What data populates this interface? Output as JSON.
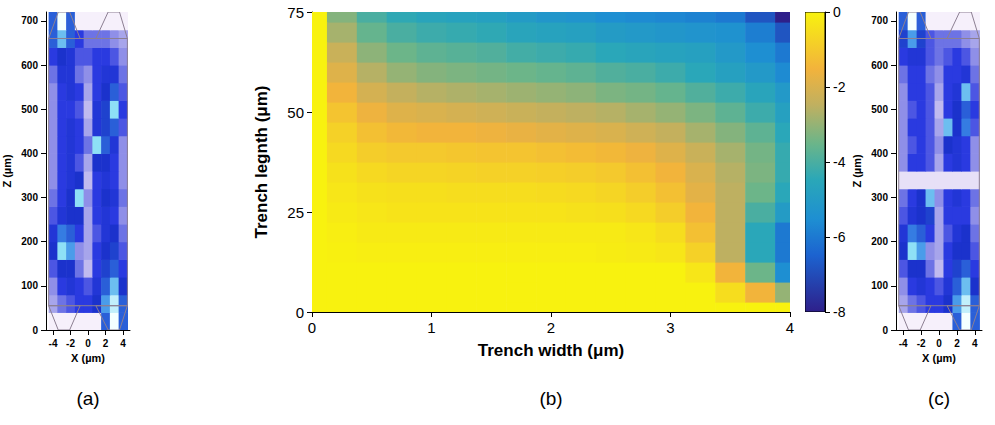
{
  "chart_data": [
    {
      "type": "heatmap",
      "panel": "(a)",
      "xlabel": "X (µm)",
      "ylabel": "Z (µm)",
      "xlim": [
        -4.8,
        4.8
      ],
      "xticks": [
        -4,
        -2,
        0,
        2,
        4
      ],
      "ylim": [
        0,
        720
      ],
      "yticks": [
        0,
        100,
        200,
        300,
        400,
        500,
        600,
        700
      ],
      "color_range": [
        0,
        1
      ],
      "x": [
        -4,
        -3,
        -2,
        -1,
        0,
        1,
        2,
        3,
        4
      ],
      "y": [
        20,
        60,
        100,
        140,
        180,
        220,
        260,
        300,
        340,
        380,
        420,
        460,
        500,
        540,
        580,
        620,
        660,
        700
      ],
      "values": [
        [
          0,
          0,
          0,
          0,
          0,
          0,
          0.7,
          1,
          0.7
        ],
        [
          0.3,
          0.4,
          0.45,
          0.5,
          0.5,
          0.6,
          0.8,
          0.95,
          0.7
        ],
        [
          0.35,
          0.5,
          0.55,
          0.5,
          0.45,
          0.55,
          0.7,
          0.85,
          0.6
        ],
        [
          0.45,
          0.6,
          0.6,
          0.4,
          0.25,
          0.5,
          0.65,
          0.7,
          0.5
        ],
        [
          0.6,
          0.9,
          0.8,
          0.35,
          0.3,
          0.5,
          0.6,
          0.65,
          0.45
        ],
        [
          0.55,
          0.75,
          0.7,
          0.5,
          0.3,
          0.45,
          0.55,
          0.6,
          0.4
        ],
        [
          0.45,
          0.55,
          0.6,
          0.6,
          0.3,
          0.5,
          0.55,
          0.5,
          0.35
        ],
        [
          0.4,
          0.5,
          0.6,
          0.9,
          0.35,
          0.5,
          0.6,
          0.55,
          0.4
        ],
        [
          0.35,
          0.5,
          0.55,
          0.6,
          0.25,
          0.5,
          0.55,
          0.5,
          0.35
        ],
        [
          0.35,
          0.5,
          0.55,
          0.45,
          0.3,
          0.6,
          0.6,
          0.5,
          0.35
        ],
        [
          0.35,
          0.5,
          0.55,
          0.5,
          0.4,
          0.9,
          0.7,
          0.55,
          0.35
        ],
        [
          0.35,
          0.5,
          0.55,
          0.5,
          0.3,
          0.55,
          0.65,
          0.7,
          0.45
        ],
        [
          0.35,
          0.5,
          0.5,
          0.45,
          0.25,
          0.55,
          0.65,
          0.9,
          0.5
        ],
        [
          0.35,
          0.5,
          0.55,
          0.5,
          0.3,
          0.5,
          0.6,
          0.7,
          0.45
        ],
        [
          0.4,
          0.55,
          0.55,
          0.4,
          0.35,
          0.5,
          0.55,
          0.55,
          0.4
        ],
        [
          0.5,
          0.6,
          0.55,
          0.45,
          0.45,
          0.5,
          0.5,
          0.45,
          0.35
        ],
        [
          0.7,
          0.85,
          0.7,
          0.5,
          0.4,
          0.4,
          0.4,
          0.35,
          0.3
        ],
        [
          0.7,
          1,
          0.7,
          0,
          0,
          0,
          0,
          0,
          0
        ]
      ],
      "outlines": [
        [
          [
            -4.5,
            55
          ],
          [
            4.5,
            55
          ],
          [
            4.5,
            660
          ],
          [
            -4.5,
            660
          ]
        ],
        [
          [
            -4.5,
            55
          ],
          [
            -0.9,
            55
          ],
          [
            -2.1,
            0
          ],
          [
            -3.4,
            0
          ]
        ],
        [
          [
            0.9,
            55
          ],
          [
            4.5,
            55
          ],
          [
            3.6,
            0
          ],
          [
            2.3,
            0
          ]
        ],
        [
          [
            -4.5,
            660
          ],
          [
            -0.9,
            660
          ],
          [
            -2.1,
            720
          ],
          [
            -3.4,
            720
          ]
        ],
        [
          [
            0.9,
            660
          ],
          [
            4.5,
            660
          ],
          [
            3.6,
            720
          ],
          [
            2.3,
            720
          ]
        ]
      ]
    },
    {
      "type": "contour",
      "panel": "(b)",
      "xlabel": "Trench width (μm)",
      "ylabel": "Trench legnth (μm)",
      "xlim": [
        0,
        4
      ],
      "xticks": [
        0,
        1,
        2,
        3,
        4
      ],
      "ylim": [
        0,
        75
      ],
      "yticks": [
        0,
        25,
        50,
        75
      ],
      "colorbar": {
        "range": [
          -8,
          0
        ],
        "ticks": [
          0,
          -2,
          -4,
          -6,
          -8
        ]
      },
      "x": [
        0,
        0.25,
        0.5,
        0.75,
        1,
        1.25,
        1.5,
        1.75,
        2,
        2.25,
        2.5,
        2.75,
        3,
        3.25,
        3.5,
        3.75,
        4
      ],
      "y": [
        0,
        5,
        10,
        15,
        20,
        25,
        30,
        35,
        40,
        45,
        50,
        55,
        60,
        65,
        70,
        75
      ],
      "values": [
        [
          0,
          0,
          0,
          0,
          0,
          0,
          0,
          0,
          0,
          0,
          0,
          0,
          0,
          0,
          0,
          0,
          0
        ],
        [
          0,
          0,
          0,
          0,
          0,
          0,
          0,
          0,
          0,
          0,
          0,
          0,
          0,
          0,
          -0.5,
          -1.5,
          -3
        ],
        [
          0,
          0,
          0,
          0,
          0,
          0,
          0,
          0,
          0,
          0,
          0,
          0,
          0,
          -0.3,
          -1.5,
          -3.5,
          -5.5
        ],
        [
          0,
          -0.05,
          -0.1,
          -0.1,
          -0.1,
          -0.1,
          -0.1,
          -0.1,
          -0.1,
          -0.1,
          -0.15,
          -0.2,
          -0.3,
          -0.8,
          -2.5,
          -4.5,
          -6
        ],
        [
          0,
          -0.1,
          -0.2,
          -0.2,
          -0.2,
          -0.2,
          -0.2,
          -0.2,
          -0.2,
          -0.2,
          -0.2,
          -0.3,
          -0.5,
          -1.2,
          -2.5,
          -4.5,
          -6
        ],
        [
          0,
          -0.2,
          -0.3,
          -0.35,
          -0.35,
          -0.35,
          -0.35,
          -0.35,
          -0.35,
          -0.4,
          -0.45,
          -0.6,
          -0.9,
          -1.5,
          -2.5,
          -4,
          -5
        ],
        [
          0,
          -0.3,
          -0.4,
          -0.45,
          -0.45,
          -0.5,
          -0.5,
          -0.5,
          -0.55,
          -0.6,
          -0.7,
          -0.9,
          -1.2,
          -1.8,
          -2.5,
          -3.5,
          -4.5
        ],
        [
          0,
          -0.4,
          -0.6,
          -0.7,
          -0.7,
          -0.75,
          -0.8,
          -0.8,
          -0.85,
          -0.9,
          -1,
          -1.2,
          -1.5,
          -2,
          -2.6,
          -3.3,
          -4.3
        ],
        [
          0,
          -0.6,
          -0.9,
          -1,
          -1,
          -1.05,
          -1.1,
          -1.1,
          -1.2,
          -1.3,
          -1.4,
          -1.6,
          -1.9,
          -2.3,
          -2.8,
          -3.4,
          -4.3
        ],
        [
          0,
          -0.8,
          -1.2,
          -1.4,
          -1.5,
          -1.5,
          -1.6,
          -1.7,
          -1.8,
          -1.9,
          -2,
          -2.2,
          -2.4,
          -2.8,
          -3.2,
          -3.7,
          -4.5
        ],
        [
          0,
          -1.1,
          -1.6,
          -1.9,
          -2,
          -2.1,
          -2.2,
          -2.3,
          -2.4,
          -2.5,
          -2.6,
          -2.8,
          -3,
          -3.3,
          -3.7,
          -4.2,
          -4.8
        ],
        [
          0,
          -1.5,
          -2.1,
          -2.4,
          -2.6,
          -2.7,
          -2.8,
          -2.9,
          -3,
          -3.1,
          -3.3,
          -3.4,
          -3.6,
          -3.9,
          -4.2,
          -4.6,
          -5.1
        ],
        [
          0,
          -1.9,
          -2.6,
          -3,
          -3.2,
          -3.3,
          -3.4,
          -3.5,
          -3.6,
          -3.7,
          -3.9,
          -4,
          -4.2,
          -4.5,
          -4.8,
          -5.1,
          -5.6
        ],
        [
          0,
          -2.3,
          -3.1,
          -3.5,
          -3.7,
          -3.8,
          -3.9,
          -4.1,
          -4.2,
          -4.3,
          -4.5,
          -4.6,
          -4.7,
          -4.8,
          -5.1,
          -5.5,
          -6
        ],
        [
          0,
          -2.8,
          -3.6,
          -4,
          -4.2,
          -4.3,
          -4.4,
          -4.6,
          -4.7,
          -4.8,
          -5,
          -5.1,
          -5.2,
          -5.3,
          -5.4,
          -5.9,
          -6.8
        ],
        [
          0,
          -3.2,
          -4,
          -4.4,
          -4.6,
          -4.7,
          -4.8,
          -5,
          -5.2,
          -5.3,
          -5.5,
          -5.6,
          -5.7,
          -5.8,
          -6,
          -6.8,
          -8
        ]
      ]
    },
    {
      "type": "heatmap",
      "panel": "(c)",
      "xlabel": "X (µm)",
      "ylabel": "Z (µm)",
      "xlim": [
        -4.8,
        4.8
      ],
      "xticks": [
        -4,
        -2,
        0,
        2,
        4
      ],
      "ylim": [
        0,
        720
      ],
      "yticks": [
        0,
        100,
        200,
        300,
        400,
        500,
        600,
        700
      ],
      "color_range": [
        0,
        1
      ],
      "x": [
        -4,
        -3,
        -2,
        -1,
        0,
        1,
        2,
        3,
        4
      ],
      "y": [
        20,
        60,
        100,
        140,
        180,
        220,
        260,
        300,
        340,
        380,
        420,
        460,
        500,
        540,
        580,
        620,
        660,
        700
      ],
      "values": [
        [
          0,
          0,
          0,
          0,
          0,
          0,
          0.7,
          1,
          0.7
        ],
        [
          0.3,
          0.4,
          0.45,
          0.5,
          0.5,
          0.6,
          0.8,
          0.95,
          0.7
        ],
        [
          0.35,
          0.5,
          0.55,
          0.5,
          0.45,
          0.55,
          0.7,
          0.85,
          0.6
        ],
        [
          0.45,
          0.6,
          0.6,
          0.4,
          0.25,
          0.5,
          0.65,
          0.7,
          0.5
        ],
        [
          0.6,
          0.9,
          0.8,
          0.35,
          0.3,
          0.5,
          0.6,
          0.6,
          0.45
        ],
        [
          0.55,
          0.75,
          0.7,
          0.5,
          0.3,
          0.45,
          0.55,
          0.6,
          0.4
        ],
        [
          0.45,
          0.55,
          0.6,
          0.65,
          0.3,
          0.5,
          0.5,
          0.5,
          0.35
        ],
        [
          0.4,
          0.5,
          0.6,
          0.85,
          0.35,
          0.5,
          0.55,
          0.5,
          0.4
        ],
        [
          0.1,
          0.1,
          0.1,
          0.1,
          0.1,
          0.1,
          0.1,
          0.1,
          0.1
        ],
        [
          0.35,
          0.5,
          0.5,
          0.45,
          0.3,
          0.5,
          0.55,
          0.5,
          0.35
        ],
        [
          0.35,
          0.45,
          0.5,
          0.45,
          0.35,
          0.6,
          0.55,
          0.5,
          0.35
        ],
        [
          0.35,
          0.5,
          0.5,
          0.45,
          0.3,
          0.85,
          0.6,
          0.75,
          0.45
        ],
        [
          0.35,
          0.45,
          0.5,
          0.45,
          0.25,
          0.5,
          0.6,
          0.7,
          0.5
        ],
        [
          0.35,
          0.5,
          0.5,
          0.45,
          0.3,
          0.5,
          0.55,
          0.85,
          0.45
        ],
        [
          0.4,
          0.5,
          0.5,
          0.4,
          0.35,
          0.5,
          0.5,
          0.55,
          0.4
        ],
        [
          0.5,
          0.55,
          0.55,
          0.45,
          0.4,
          0.45,
          0.5,
          0.45,
          0.35
        ],
        [
          0.65,
          0.8,
          0.65,
          0.45,
          0.4,
          0.4,
          0.4,
          0.35,
          0.3
        ],
        [
          0.7,
          1,
          0.7,
          0,
          0,
          0,
          0,
          0,
          0
        ]
      ],
      "outlines": [
        [
          [
            -4.5,
            55
          ],
          [
            4.5,
            55
          ],
          [
            4.5,
            660
          ],
          [
            -4.5,
            660
          ]
        ],
        [
          [
            -4.5,
            55
          ],
          [
            -0.9,
            55
          ],
          [
            -2.1,
            0
          ],
          [
            -3.4,
            0
          ]
        ],
        [
          [
            0.9,
            55
          ],
          [
            4.5,
            55
          ],
          [
            3.6,
            0
          ],
          [
            2.3,
            0
          ]
        ],
        [
          [
            -4.5,
            660
          ],
          [
            -0.9,
            660
          ],
          [
            -2.1,
            720
          ],
          [
            -3.4,
            720
          ]
        ],
        [
          [
            0.9,
            660
          ],
          [
            4.5,
            660
          ],
          [
            3.6,
            720
          ],
          [
            2.3,
            720
          ]
        ]
      ]
    }
  ]
}
